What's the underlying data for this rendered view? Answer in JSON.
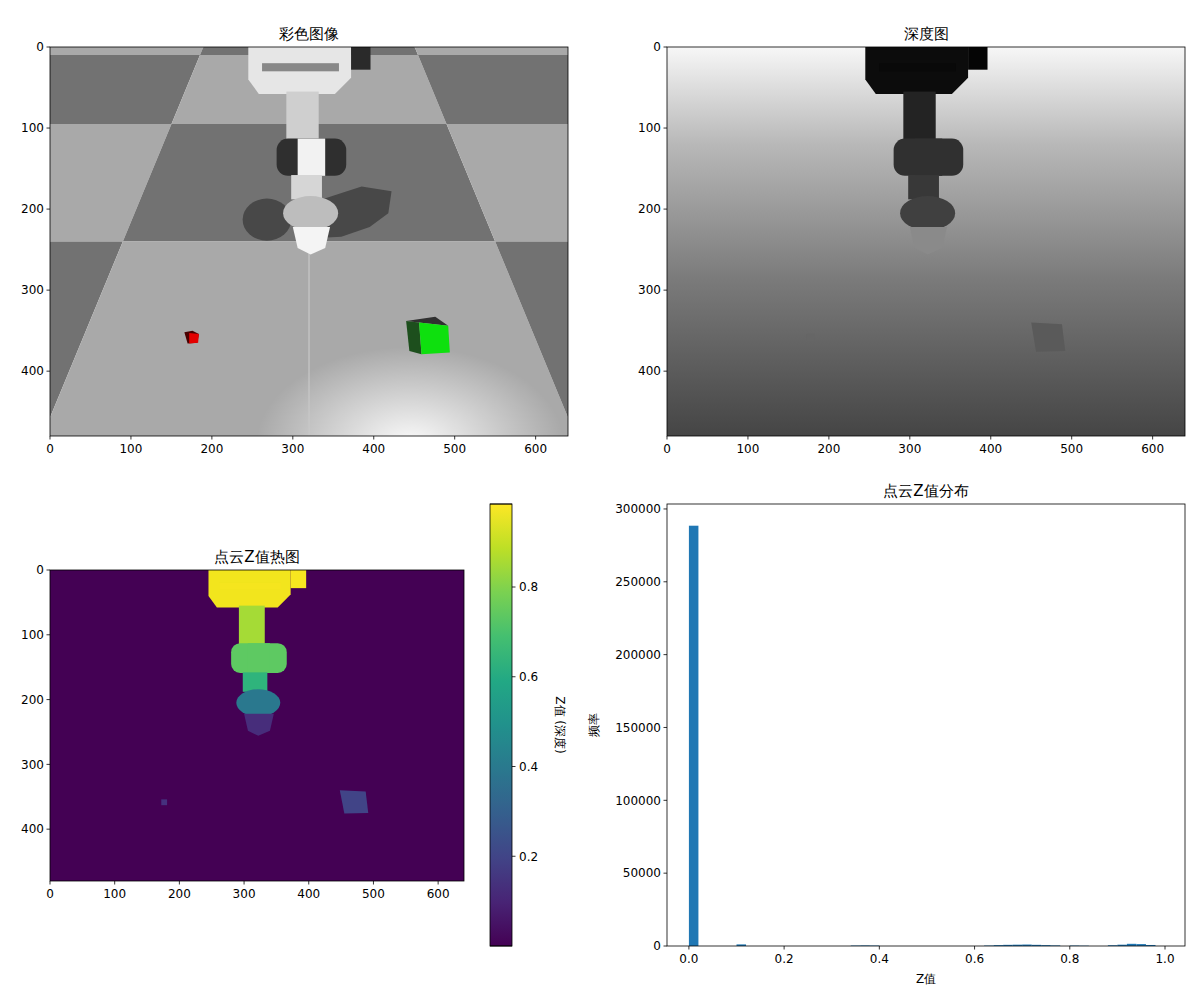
{
  "chart_data": [
    {
      "type": "image",
      "title": "彩色图像",
      "xlim": [
        0,
        640
      ],
      "ylim": [
        480,
        0
      ],
      "xticks": [
        0,
        100,
        200,
        300,
        400,
        500,
        600
      ],
      "yticks": [
        0,
        100,
        200,
        300,
        400
      ]
    },
    {
      "type": "image",
      "title": "深度图",
      "xlim": [
        0,
        640
      ],
      "ylim": [
        480,
        0
      ],
      "xticks": [
        0,
        100,
        200,
        300,
        400,
        500,
        600
      ],
      "yticks": [
        0,
        100,
        200,
        300,
        400
      ]
    },
    {
      "type": "heatmap",
      "title": "点云Z值热图",
      "xlim": [
        0,
        640
      ],
      "ylim": [
        480,
        0
      ],
      "xticks": [
        0,
        100,
        200,
        300,
        400,
        500,
        600
      ],
      "yticks": [
        0,
        100,
        200,
        300,
        400
      ],
      "colorbar_label": "Z值 (深度)",
      "colorbar_range": [
        0,
        0.985
      ],
      "colorbar_ticks": [
        0.2,
        0.4,
        0.6,
        0.8
      ]
    },
    {
      "type": "histogram",
      "title": "点云Z值分布",
      "x_label": "Z值",
      "y_label": "频率",
      "bins": [
        0,
        0.02,
        0.04,
        0.06,
        0.08,
        0.1,
        0.12,
        0.14,
        0.16,
        0.18,
        0.2,
        0.22,
        0.24,
        0.26,
        0.28,
        0.3,
        0.32,
        0.34,
        0.36,
        0.38,
        0.4,
        0.42,
        0.44,
        0.46,
        0.48,
        0.5,
        0.52,
        0.54,
        0.56,
        0.58,
        0.6,
        0.62,
        0.64,
        0.66,
        0.68,
        0.7,
        0.72,
        0.74,
        0.76,
        0.78,
        0.8,
        0.82,
        0.84,
        0.86,
        0.88,
        0.9,
        0.92,
        0.94,
        0.96,
        0.98,
        1
      ],
      "values": [
        288500,
        0,
        0,
        0,
        0,
        1100,
        0,
        0,
        0,
        0,
        0,
        0,
        0,
        0,
        0,
        0,
        0,
        300,
        400,
        300,
        0,
        0,
        0,
        0,
        0,
        0,
        0,
        0,
        0,
        0,
        0,
        300,
        600,
        800,
        900,
        1000,
        800,
        600,
        400,
        0,
        300,
        200,
        0,
        0,
        500,
        900,
        1500,
        1300,
        700,
        0
      ],
      "color": "#1f77b4",
      "xlim": [
        -0.046,
        1.042
      ],
      "ylim": [
        0,
        303400
      ],
      "xticks": [
        {
          "value": 0,
          "label": "0.0"
        },
        0.2,
        0.4,
        0.6,
        0.8,
        {
          "value": 1,
          "label": "1.0"
        }
      ],
      "yticks": [
        0,
        50000,
        100000,
        150000,
        200000,
        250000,
        300000
      ]
    }
  ]
}
